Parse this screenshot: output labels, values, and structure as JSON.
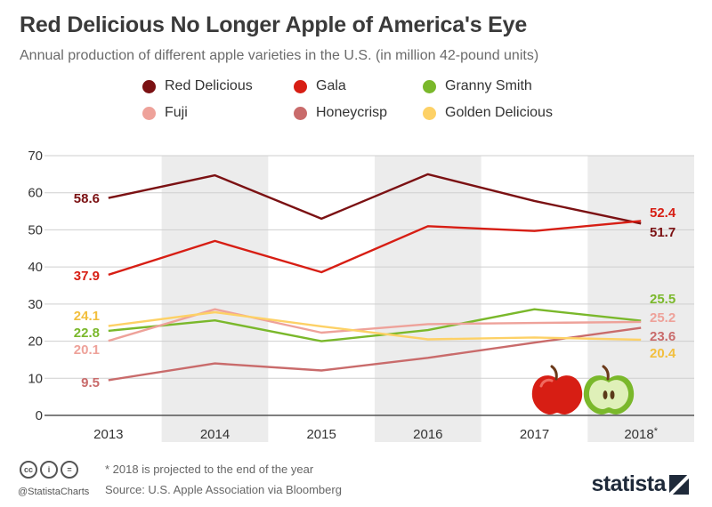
{
  "header": {
    "title": "Red Delicious No Longer Apple of America's Eye",
    "subtitle": "Annual production of different apple varieties in the U.S. (in million 42-pound units)"
  },
  "chart_data": {
    "type": "line",
    "title": "Red Delicious No Longer Apple of America's Eye",
    "subtitle": "Annual production of different apple varieties in the U.S. (in million 42-pound units)",
    "categories": [
      "2013",
      "2014",
      "2015",
      "2016",
      "2017",
      "2018"
    ],
    "category_note_marker": "*",
    "ylim": [
      0,
      70
    ],
    "yticks": [
      0,
      10,
      20,
      30,
      40,
      50,
      60,
      70
    ],
    "xlabel": "",
    "ylabel": "",
    "grid": true,
    "legend_position": "top",
    "series": [
      {
        "name": "Red Delicious",
        "color": "#7b1113",
        "values": [
          58.6,
          64.7,
          53.0,
          65.0,
          57.8,
          51.7
        ],
        "start_label": "58.6",
        "end_label": "51.7"
      },
      {
        "name": "Gala",
        "color": "#d71e14",
        "values": [
          37.9,
          47.0,
          38.6,
          51.0,
          49.7,
          52.4
        ],
        "start_label": "37.9",
        "end_label": "52.4"
      },
      {
        "name": "Granny Smith",
        "color": "#7ab82b",
        "values": [
          22.8,
          25.6,
          20.0,
          23.0,
          28.6,
          25.5
        ],
        "start_label": "22.8",
        "end_label": "25.5"
      },
      {
        "name": "Fuji",
        "color": "#eea29a",
        "values": [
          20.1,
          28.6,
          22.3,
          24.6,
          24.9,
          25.2
        ],
        "start_label": "20.1",
        "end_label": "25.2"
      },
      {
        "name": "Honeycrisp",
        "color": "#c96b6b",
        "values": [
          9.5,
          14.0,
          12.1,
          15.5,
          19.6,
          23.6
        ],
        "start_label": "9.5",
        "end_label": "23.6"
      },
      {
        "name": "Golden Delicious",
        "color": "#fdd166",
        "values": [
          24.1,
          27.8,
          24.0,
          20.5,
          21.0,
          20.4
        ],
        "start_label": "24.1",
        "end_label": "20.4"
      }
    ]
  },
  "footer": {
    "handle": "@StatistaCharts",
    "note": "* 2018 is projected to the end of the year",
    "source": "Source: U.S. Apple Association via Bloomberg",
    "brand": "statista",
    "cc_labels": [
      "cc",
      "i",
      "="
    ]
  }
}
